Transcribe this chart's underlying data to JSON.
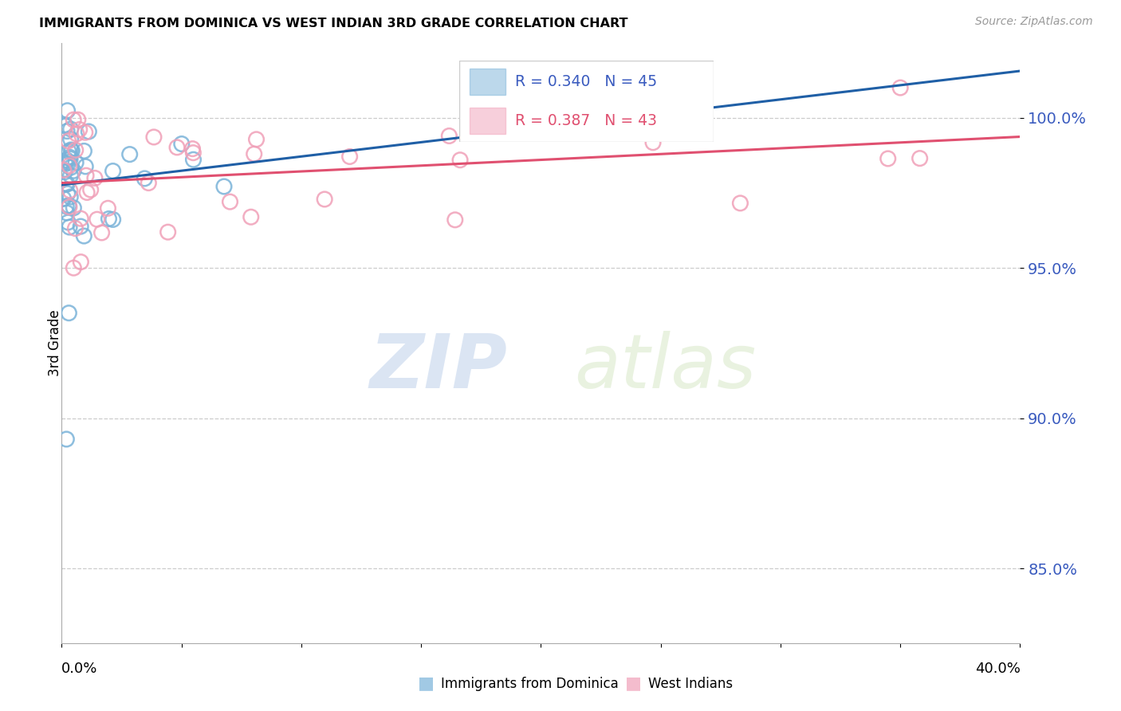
{
  "title": "IMMIGRANTS FROM DOMINICA VS WEST INDIAN 3RD GRADE CORRELATION CHART",
  "source": "Source: ZipAtlas.com",
  "ylabel": "3rd Grade",
  "r_blue": 0.34,
  "n_blue": 45,
  "r_pink": 0.387,
  "n_pink": 43,
  "legend_label_blue": "Immigrants from Dominica",
  "legend_label_pink": "West Indians",
  "blue_color": "#7ab3d9",
  "pink_color": "#f0a0b8",
  "trend_blue": "#1f5fa6",
  "trend_pink": "#e05070",
  "watermark_zip": "ZIP",
  "watermark_atlas": "atlas",
  "yticks": [
    0.85,
    0.9,
    0.95,
    1.0
  ],
  "ytick_labels": [
    "85.0%",
    "90.0%",
    "95.0%",
    "100.0%"
  ],
  "xmin": 0.0,
  "xmax": 0.4,
  "ymin": 0.825,
  "ymax": 1.025
}
